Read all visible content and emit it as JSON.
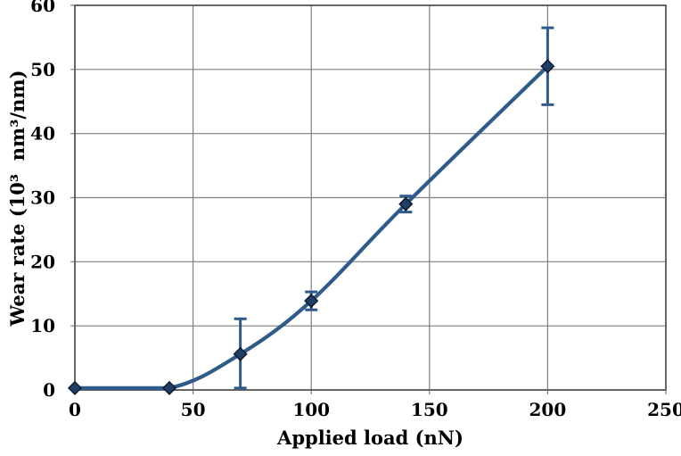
{
  "chart_data": {
    "type": "line",
    "title": "",
    "xlabel": "Applied load (nN)",
    "ylabel": "Wear rate (10³  nm³/nm)",
    "x": [
      0,
      40,
      70,
      100,
      140,
      200
    ],
    "y": [
      0.3,
      0.3,
      5.6,
      13.9,
      29.0,
      50.5
    ],
    "yerr_plus": [
      0,
      0,
      5.5,
      1.4,
      1.25,
      6.0
    ],
    "yerr_minus": [
      0,
      0,
      5.3,
      1.4,
      1.25,
      6.0
    ],
    "xlim": [
      0,
      250
    ],
    "ylim": [
      0,
      60
    ],
    "xticks": [
      0,
      50,
      100,
      150,
      200,
      250
    ],
    "yticks": [
      0,
      10,
      20,
      30,
      40,
      50,
      60
    ],
    "grid": true,
    "legend_position": "none",
    "marker": "diamond",
    "colors": {
      "line": "#2F5B8A",
      "error_bar": "#2F5B8A",
      "marker_fill": "#1F3D66",
      "marker_edge": "#0E1B2E",
      "grid": "#7F7F7F",
      "border": "#595959",
      "text": "#000000",
      "background": "#FFFFFF"
    }
  }
}
